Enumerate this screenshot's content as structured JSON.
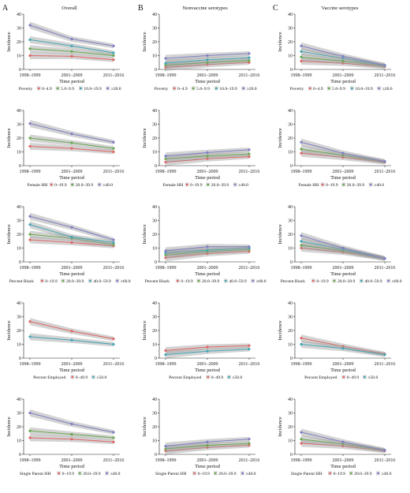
{
  "figure": {
    "columns": [
      {
        "letter": "A",
        "title": "Overall"
      },
      {
        "letter": "B",
        "title": "Nonvaccine serotypes"
      },
      {
        "letter": "C",
        "title": "Vaccine serotypes"
      }
    ],
    "palette": [
      "#e06666",
      "#6aa84f",
      "#45a6b5",
      "#7f7fc4"
    ]
  },
  "chart_data": [
    {
      "type": "line",
      "row": 0,
      "col": 0,
      "ylabel": "Incidence",
      "xlabel": "Time period",
      "ylim": [
        0,
        40
      ],
      "yticks": [
        0,
        10,
        20,
        30,
        40
      ],
      "categories": [
        "1998–1999",
        "2001–2009",
        "2011–2016"
      ],
      "legend_title": "Poverty",
      "series": [
        {
          "name": "0–4.9",
          "values": [
            10,
            9.5,
            7
          ]
        },
        {
          "name": "5.0–9.9",
          "values": [
            15,
            13,
            10
          ]
        },
        {
          "name": "10.0–19.9",
          "values": [
            21.5,
            17,
            12
          ]
        },
        {
          "name": "≥20.0",
          "values": [
            32,
            22,
            17
          ]
        }
      ]
    },
    {
      "type": "line",
      "row": 0,
      "col": 1,
      "ylabel": "Incidence",
      "xlabel": "Time period",
      "ylim": [
        0,
        40
      ],
      "yticks": [
        0,
        10,
        20,
        30,
        40
      ],
      "categories": [
        "1998–1999",
        "2001–2009",
        "2011–2016"
      ],
      "legend_title": "Poverty",
      "series": [
        {
          "name": "0–4.9",
          "values": [
            1.5,
            3.5,
            5
          ]
        },
        {
          "name": "5.0–9.9",
          "values": [
            3,
            5,
            6.5
          ]
        },
        {
          "name": "10.0–19.9",
          "values": [
            4.5,
            7,
            8.5
          ]
        },
        {
          "name": "≥20.0",
          "values": [
            8,
            10,
            11.5
          ]
        }
      ]
    },
    {
      "type": "line",
      "row": 0,
      "col": 2,
      "ylabel": "Incidence",
      "xlabel": "Time period",
      "ylim": [
        0,
        40
      ],
      "yticks": [
        0,
        10,
        20,
        30,
        40
      ],
      "categories": [
        "1998–1999",
        "2001–2009",
        "2011–2016"
      ],
      "legend_title": "Poverty",
      "series": [
        {
          "name": "0–4.9",
          "values": [
            6,
            4.5,
            2
          ]
        },
        {
          "name": "5.0–9.9",
          "values": [
            9,
            6,
            2.5
          ]
        },
        {
          "name": "10.0–19.9",
          "values": [
            13,
            8,
            3
          ]
        },
        {
          "name": "≥20.0",
          "values": [
            17,
            9.5,
            3
          ]
        }
      ]
    },
    {
      "type": "line",
      "row": 1,
      "col": 0,
      "ylabel": "Incidence",
      "xlabel": "Time period",
      "ylim": [
        0,
        40
      ],
      "yticks": [
        0,
        10,
        20,
        30,
        40
      ],
      "categories": [
        "1998–1999",
        "2001–2009",
        "2011–2016"
      ],
      "legend_title": "Female HH",
      "series": [
        {
          "name": "0–19.9",
          "values": [
            14,
            12.5,
            10
          ]
        },
        {
          "name": "20.0–39.9",
          "values": [
            20,
            16.5,
            12.5
          ]
        },
        {
          "name": "≥40.0",
          "values": [
            30.5,
            23,
            17
          ]
        }
      ]
    },
    {
      "type": "line",
      "row": 1,
      "col": 1,
      "ylabel": "Incidence",
      "xlabel": "Time period",
      "ylim": [
        0,
        40
      ],
      "yticks": [
        0,
        10,
        20,
        30,
        40
      ],
      "categories": [
        "1998–1999",
        "2001–2009",
        "2011–2016"
      ],
      "legend_title": "Female HH",
      "series": [
        {
          "name": "0–19.9",
          "values": [
            2.5,
            5,
            6.5
          ]
        },
        {
          "name": "20.0–39.9",
          "values": [
            5,
            7,
            8.5
          ]
        },
        {
          "name": "≥40.0",
          "values": [
            7,
            9.5,
            11.5
          ]
        }
      ]
    },
    {
      "type": "line",
      "row": 1,
      "col": 2,
      "ylabel": "Incidence",
      "xlabel": "Time period",
      "ylim": [
        0,
        40
      ],
      "yticks": [
        0,
        10,
        20,
        30,
        40
      ],
      "categories": [
        "1998–1999",
        "2001–2009",
        "2011–2016"
      ],
      "legend_title": "Female HH",
      "series": [
        {
          "name": "0–19.9",
          "values": [
            9,
            6,
            2.5
          ]
        },
        {
          "name": "20.0–39.9",
          "values": [
            12,
            7.5,
            3
          ]
        },
        {
          "name": "≥40.0",
          "values": [
            17,
            9,
            3
          ]
        }
      ]
    },
    {
      "type": "line",
      "row": 2,
      "col": 0,
      "ylabel": "Incidence",
      "xlabel": "Time period",
      "ylim": [
        0,
        40
      ],
      "yticks": [
        0,
        10,
        20,
        30,
        40
      ],
      "categories": [
        "1998–1999",
        "2001–2009",
        "2011–2016"
      ],
      "legend_title": "Percent Black",
      "series": [
        {
          "name": "0–19.9",
          "values": [
            16,
            14,
            11.5
          ]
        },
        {
          "name": "20.0–39.9",
          "values": [
            20,
            17,
            12.5
          ]
        },
        {
          "name": "40.0–59.9",
          "values": [
            27,
            18,
            14
          ]
        },
        {
          "name": "≥60.0",
          "values": [
            33,
            25,
            16
          ]
        }
      ]
    },
    {
      "type": "line",
      "row": 2,
      "col": 1,
      "ylabel": "Incidence",
      "xlabel": "Time period",
      "ylim": [
        0,
        40
      ],
      "yticks": [
        0,
        10,
        20,
        30,
        40
      ],
      "categories": [
        "1998–1999",
        "2001–2009",
        "2011–2016"
      ],
      "legend_title": "Percent Black",
      "series": [
        {
          "name": "0–19.9",
          "values": [
            3,
            6,
            7.5
          ]
        },
        {
          "name": "20.0–39.9",
          "values": [
            5,
            7.5,
            9
          ]
        },
        {
          "name": "40.0–59.9",
          "values": [
            6.5,
            8.5,
            10
          ]
        },
        {
          "name": "≥60.0",
          "values": [
            8,
            11,
            11
          ]
        }
      ]
    },
    {
      "type": "line",
      "row": 2,
      "col": 2,
      "ylabel": "Incidence",
      "xlabel": "Time period",
      "ylim": [
        0,
        40
      ],
      "yticks": [
        0,
        10,
        20,
        30,
        40
      ],
      "categories": [
        "1998–1999",
        "2001–2009",
        "2011–2016"
      ],
      "legend_title": "Percent Black",
      "series": [
        {
          "name": "0–19.9",
          "values": [
            10,
            7,
            2.5
          ]
        },
        {
          "name": "20.0–39.9",
          "values": [
            12,
            8,
            2.5
          ]
        },
        {
          "name": "40.0–59.9",
          "values": [
            15,
            9,
            2.5
          ]
        },
        {
          "name": "≥60.0",
          "values": [
            19,
            10,
            2.5
          ]
        }
      ]
    },
    {
      "type": "line",
      "row": 3,
      "col": 0,
      "ylabel": "Incidence",
      "xlabel": "Time period",
      "ylim": [
        0,
        40
      ],
      "yticks": [
        0,
        10,
        20,
        30,
        40
      ],
      "categories": [
        "1998–1999",
        "2001–2009",
        "2011–2016"
      ],
      "legend_title": "Percent Employed",
      "series": [
        {
          "name": "0–49.9",
          "values": [
            26.5,
            19.5,
            14
          ]
        },
        {
          "name": "≥50.0",
          "values": [
            15.5,
            13,
            10
          ]
        }
      ]
    },
    {
      "type": "line",
      "row": 3,
      "col": 1,
      "ylabel": "Incidence",
      "xlabel": "Time period",
      "ylim": [
        0,
        40
      ],
      "yticks": [
        0,
        10,
        20,
        30,
        40
      ],
      "categories": [
        "1998–1999",
        "2001–2009",
        "2011–2016"
      ],
      "legend_title": "Percent Employed",
      "series": [
        {
          "name": "0–49.9",
          "values": [
            5.5,
            8,
            9
          ]
        },
        {
          "name": "≥50.0",
          "values": [
            2.5,
            5,
            6.5
          ]
        }
      ]
    },
    {
      "type": "line",
      "row": 3,
      "col": 2,
      "ylabel": "Incidence",
      "xlabel": "Time period",
      "ylim": [
        0,
        40
      ],
      "yticks": [
        0,
        10,
        20,
        30,
        40
      ],
      "categories": [
        "1998–1999",
        "2001–2009",
        "2011–2016"
      ],
      "legend_title": "Percent Employed",
      "series": [
        {
          "name": "0–49.9",
          "values": [
            14.5,
            8.5,
            3
          ]
        },
        {
          "name": "≥50.0",
          "values": [
            10,
            7,
            2.5
          ]
        }
      ]
    },
    {
      "type": "line",
      "row": 4,
      "col": 0,
      "ylabel": "Incidence",
      "xlabel": "Time period",
      "ylim": [
        0,
        40
      ],
      "yticks": [
        0,
        10,
        20,
        30,
        40
      ],
      "categories": [
        "1998–1999",
        "2001–2009",
        "2011–2016"
      ],
      "legend_title": "Single Parent HH",
      "series": [
        {
          "name": "0–19.9",
          "values": [
            12,
            11,
            9
          ]
        },
        {
          "name": "20.0–39.9",
          "values": [
            17,
            14.5,
            12
          ]
        },
        {
          "name": "≥40.0",
          "values": [
            30,
            22,
            16
          ]
        }
      ]
    },
    {
      "type": "line",
      "row": 4,
      "col": 1,
      "ylabel": "Incidence",
      "xlabel": "Time period",
      "ylim": [
        0,
        40
      ],
      "yticks": [
        0,
        10,
        20,
        30,
        40
      ],
      "categories": [
        "1998–1999",
        "2001–2009",
        "2011–2016"
      ],
      "legend_title": "Single Parent HH",
      "series": [
        {
          "name": "0–19.9",
          "values": [
            2.5,
            5,
            6.5
          ]
        },
        {
          "name": "20.0–39.9",
          "values": [
            4,
            6.5,
            8
          ]
        },
        {
          "name": "≥40.0",
          "values": [
            6,
            9,
            11
          ]
        }
      ]
    },
    {
      "type": "line",
      "row": 4,
      "col": 2,
      "ylabel": "Incidence",
      "xlabel": "Time period",
      "ylim": [
        0,
        40
      ],
      "yticks": [
        0,
        10,
        20,
        30,
        40
      ],
      "categories": [
        "1998–1999",
        "2001–2009",
        "2011–2016"
      ],
      "legend_title": "Single Parent HH",
      "series": [
        {
          "name": "0–19.9",
          "values": [
            8,
            6,
            2.5
          ]
        },
        {
          "name": "20.0–39.9",
          "values": [
            11,
            7.5,
            3
          ]
        },
        {
          "name": "≥40.0",
          "values": [
            16,
            9,
            3
          ]
        }
      ]
    }
  ]
}
